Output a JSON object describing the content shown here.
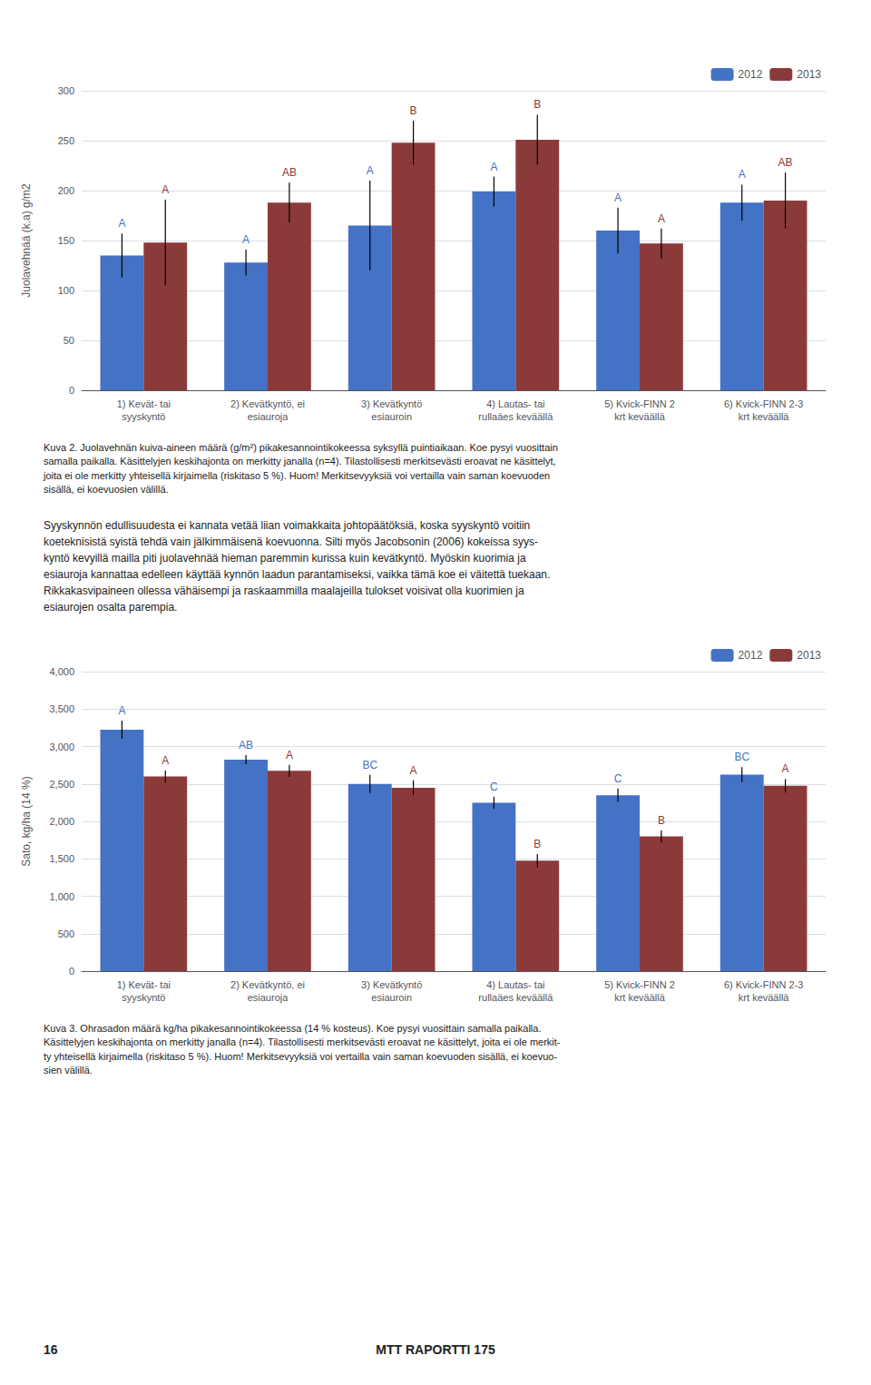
{
  "chart_data": [
    {
      "type": "bar",
      "ylabel": "Juolavehnää (k.a) g/m2",
      "categories": [
        "1) Kevät- tai\nsyyskyntö",
        "2) Kevätkyntö, ei\nesiauroja",
        "3) Kevätkyntö\nesiauroin",
        "4) Lautas- tai\nrullaäes keväällä",
        "5) Kvick-FINN 2\nkrt keväällä",
        "6) Kvick-FINN 2-3\nkrt keväällä"
      ],
      "series": [
        {
          "name": "2012",
          "color": "#4472C4",
          "values": [
            135,
            128,
            165,
            199,
            160,
            188
          ],
          "errors": [
            22,
            13,
            45,
            15,
            23,
            18
          ],
          "annotations": [
            "A",
            "A",
            "A",
            "A",
            "A",
            "A"
          ]
        },
        {
          "name": "2013",
          "color": "#8B3A3A",
          "values": [
            148,
            188,
            248,
            251,
            147,
            190
          ],
          "errors": [
            43,
            20,
            22,
            25,
            15,
            28
          ],
          "annotations": [
            "A",
            "AB",
            "B",
            "B",
            "A",
            "AB"
          ]
        }
      ],
      "ylim": [
        0,
        300
      ],
      "yticks": [
        0,
        50,
        100,
        150,
        200,
        250,
        300
      ],
      "grid": true,
      "legend": "upper right",
      "annotations": [
        "Kuva 2. Juolavehnän kuiva-aineen määrä (g/m²) pikakesannointikokeessa syksyllä puintiaikaan. Koe pysyi vuosittain\nsamalla paikalla. Käsittelyjen keskihajonta on merkitty janalla (n=4). Tilastollisesti merkitsevästi eroavat ne käsittelyt,\njoita ei ole merkitty yhteisellä kirjaimella (riskitaso 5 %). Huom! Merkitsevyyksiä voi vertailla vain saman koevuoden\nsisällä, ei koevuosien välillä.",
        "Syyskynnön edullisuudesta ei kannata vetää liian voimakkaita johtopäätöksiä, koska syyskyntö voitiin\nkoeteknisistä syistä tehdä vain jälkimmäisenä koevuonna. Silti myös Jacobsonin (2006) kokeissa syys-\nkyntö kevyillä mailla piti juolavehnää hieman paremmin kurissa kuin kevätkyntö. Myöskin kuorimia ja\nesiauroja kannattaa edelleen käyttää kynnön laadun parantamiseksi, vaikka tämä koe ei väitettä tuekaan.\nRikkakasvipaineen ollessa vähäisempi ja raskaammilla maalajeilla tulokset voisivat olla kuorimien ja\nesiaurojen osalta parempia."
      ]
    },
    {
      "type": "bar",
      "ylabel": "Sato, kg/ha (14 %)",
      "categories": [
        "1) Kevät- tai\nsyyskyntö",
        "2) Kevätkyntö, ei\nesiauroja",
        "3) Kevätkyntö\nesiauroin",
        "4) Lautas- tai\nrullaäes keväällä",
        "5) Kvick-FINN 2\nkrt keväällä",
        "6) Kvick-FINN 2-3\nkrt keväällä"
      ],
      "series": [
        {
          "name": "2012",
          "color": "#4472C4",
          "values": [
            3225,
            2825,
            2500,
            2250,
            2350,
            2625
          ],
          "errors": [
            120,
            60,
            120,
            80,
            90,
            100
          ],
          "annotations": [
            "A",
            "AB",
            "BC",
            "C",
            "C",
            "BC"
          ]
        },
        {
          "name": "2013",
          "color": "#8B3A3A",
          "values": [
            2600,
            2675,
            2450,
            1475,
            1800,
            2475
          ],
          "errors": [
            80,
            80,
            100,
            90,
            80,
            90
          ],
          "annotations": [
            "A",
            "A",
            "A",
            "B",
            "B",
            "A"
          ]
        }
      ],
      "ylim": [
        0,
        4000
      ],
      "yticks": [
        0,
        500,
        1000,
        1500,
        2000,
        2500,
        3000,
        3500,
        4000
      ],
      "grid": true,
      "legend": "upper right",
      "annotations": [
        "Kuva 3. Ohrasadon määrä kg/ha pikakesannointikokeessa (14 % kosteus). Koe pysyi vuosittain samalla paikalla.\nKäsittelyjen keskihajonta on merkitty janalla (n=4). Tilastollisesti merkitsevästi eroavat ne käsittelyt, joita ei ole merkit-\nty yhteisellä kirjaimella (riskitaso 5 %). Huom! Merkitsevyyksiä voi vertailla vain saman koevuoden sisällä, ei koevuo-\nsien välillä.",
        "16",
        "MTT RAPORTTI 175"
      ]
    }
  ]
}
